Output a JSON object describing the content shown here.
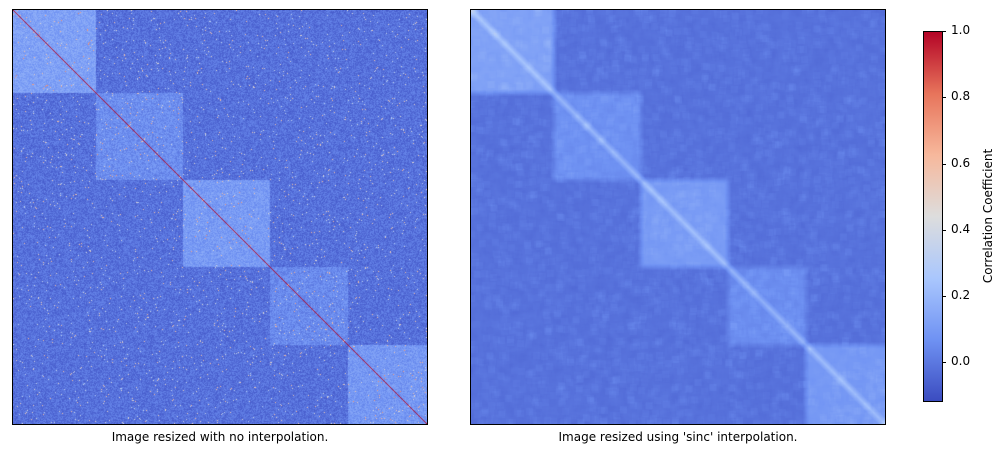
{
  "figure": {
    "panels": [
      {
        "id": "left",
        "xlabel": "Image resized with no interpolation."
      },
      {
        "id": "right",
        "xlabel": "Image resized using 'sinc' interpolation."
      }
    ],
    "colorbar": {
      "label": "Correlation Coefficient",
      "ticks": [
        "0.0",
        "0.2",
        "0.4",
        "0.6",
        "0.8",
        "1.0"
      ],
      "range": [
        -0.12,
        1.0
      ],
      "colormap": "coolwarm",
      "colors": [
        "#3b4cc0",
        "#6f92f3",
        "#aac7fd",
        "#dddddd",
        "#f7b89c",
        "#e7745b",
        "#b40426"
      ]
    }
  },
  "chart_data": {
    "type": "heatmap",
    "title": "",
    "description_of_structure": "Block-structured correlation matrix with five diagonal clusters and a unit diagonal.",
    "matrix_size_relative_blocks": [
      0.2,
      0.21,
      0.21,
      0.19,
      0.19
    ],
    "block_mean_correlation": [
      0.12,
      0.06,
      0.1,
      0.05,
      0.09
    ],
    "offdiagonal_mean_correlation": -0.02,
    "diagonal_value": 1.0,
    "vmin": -0.12,
    "vmax": 1.0,
    "colorbar_label": "Correlation Coefficient",
    "colorbar_ticks": [
      0.0,
      0.2,
      0.4,
      0.6,
      0.8,
      1.0
    ]
  }
}
